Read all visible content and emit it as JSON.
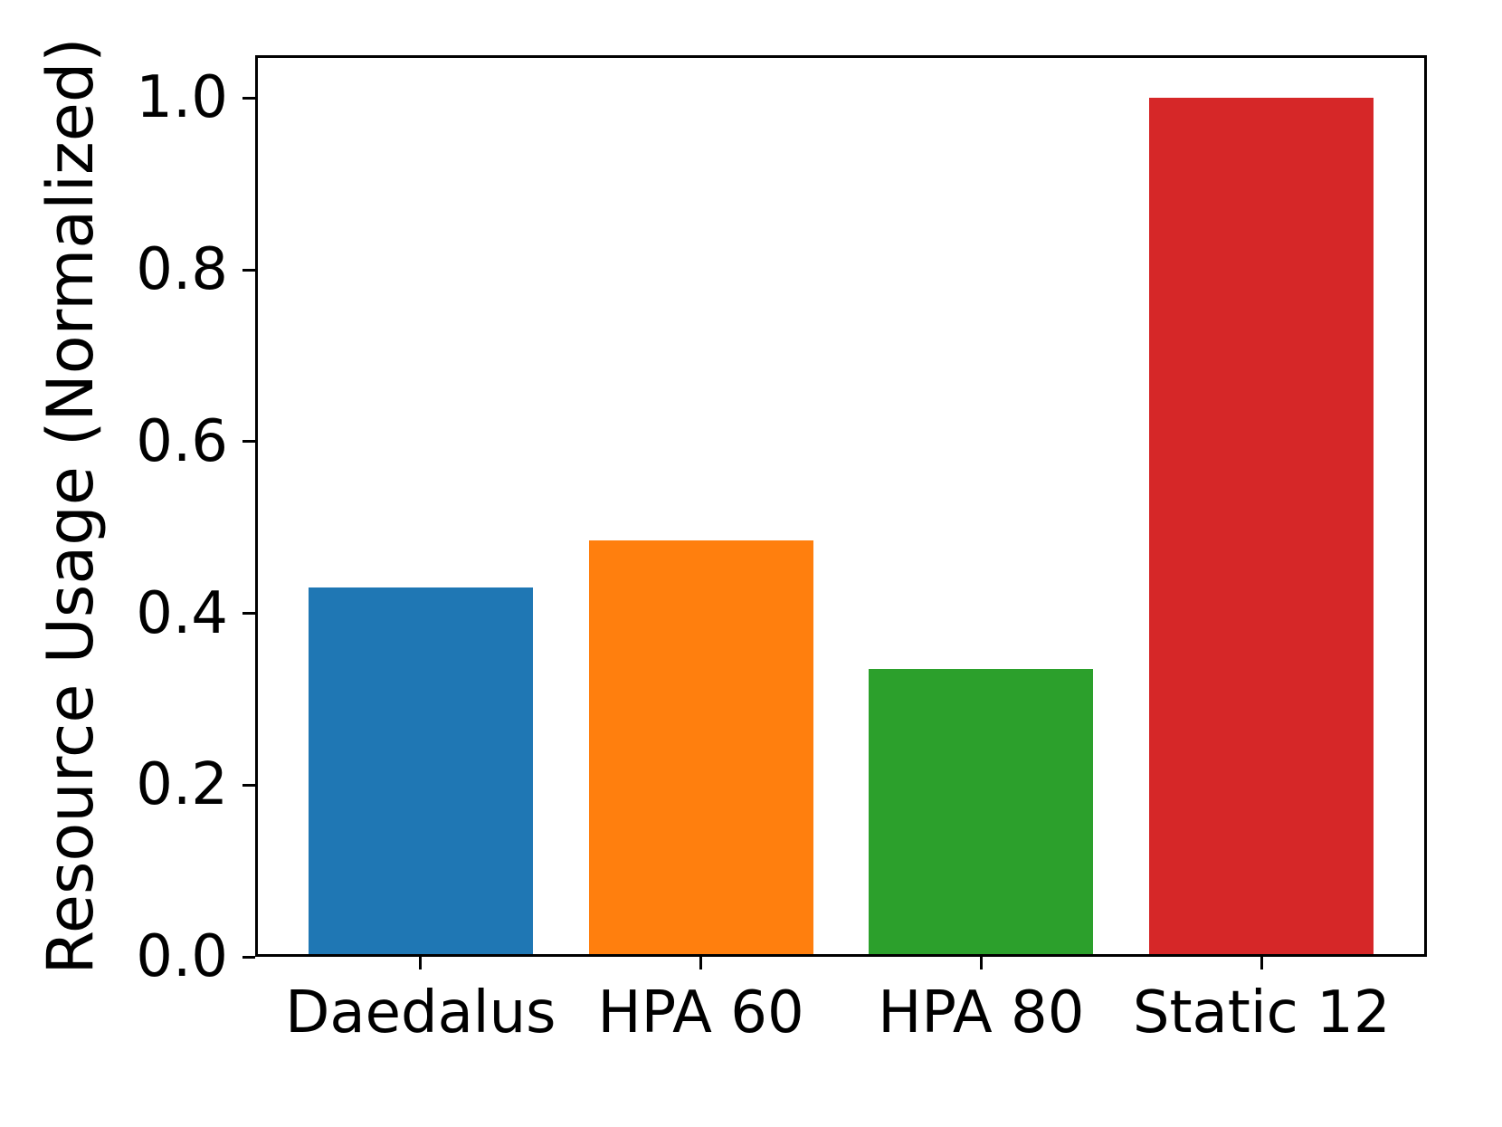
{
  "chart_data": {
    "type": "bar",
    "title": "",
    "xlabel": "",
    "ylabel": "Resource Usage (Normalized)",
    "categories": [
      "Daedalus",
      "HPA 60",
      "HPA 80",
      "Static 12"
    ],
    "values": [
      0.43,
      0.485,
      0.335,
      1.0
    ],
    "bar_colors": [
      "#1f77b4",
      "#ff7f0e",
      "#2ca02c",
      "#d62728"
    ],
    "bar_width_units": 0.8,
    "xlim": [
      -0.59,
      3.59
    ],
    "ylim": [
      0,
      1.05
    ],
    "yticks": [
      0.0,
      0.2,
      0.4,
      0.6,
      0.8,
      1.0
    ],
    "ytick_labels": [
      "0.0",
      "0.2",
      "0.4",
      "0.6",
      "0.8",
      "1.0"
    ],
    "grid": false,
    "legend": null,
    "spine_color": "#000000",
    "background_color": "#ffffff"
  }
}
